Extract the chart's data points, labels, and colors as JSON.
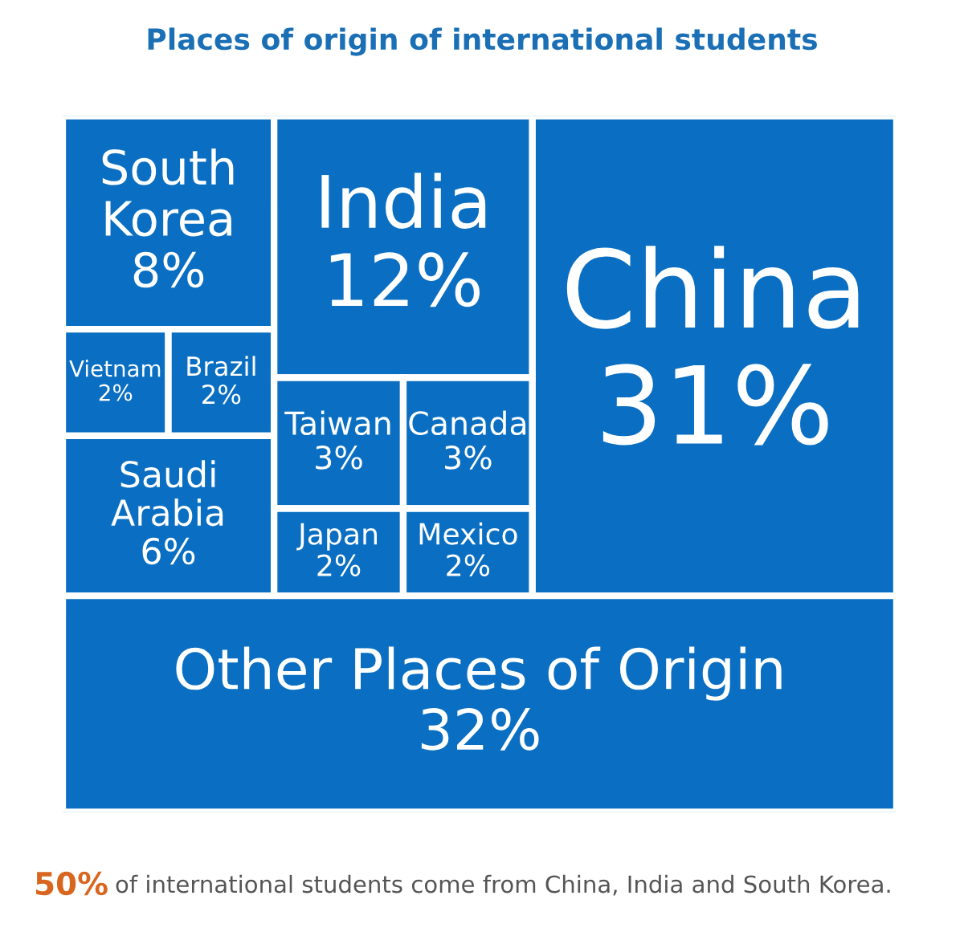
{
  "chart_data": {
    "type": "other",
    "title": "Places of origin of international students",
    "categories": [
      "South Korea",
      "India",
      "China",
      "Vietnam",
      "Brazil",
      "Taiwan",
      "Canada",
      "Saudi Arabia",
      "Japan",
      "Mexico",
      "Other Places of Origin"
    ],
    "values": [
      8,
      12,
      31,
      2,
      2,
      3,
      3,
      6,
      2,
      2,
      32
    ],
    "value_labels": [
      "8%",
      "12%",
      "31%",
      "2%",
      "2%",
      "3%",
      "3%",
      "6%",
      "2%",
      "2%",
      "32%"
    ],
    "color": "#0a6fc2",
    "annotations": [
      "50% of international students come from China, India and South Korea."
    ]
  }
}
